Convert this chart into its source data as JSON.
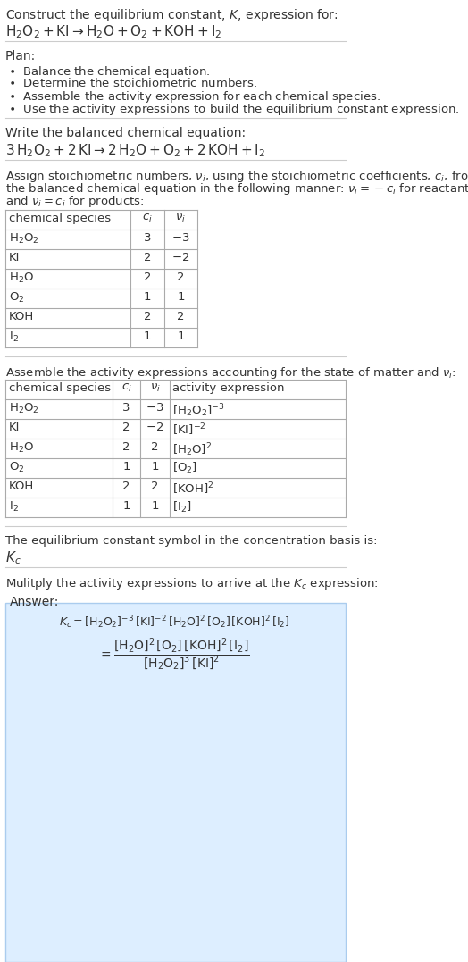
{
  "title_line1": "Construct the equilibrium constant, $K$, expression for:",
  "title_line2": "$\\text{H}_2\\text{O}_2 + \\text{KI} \\rightarrow \\text{H}_2\\text{O} + \\text{O}_2 + \\text{KOH} + \\text{I}_2$",
  "plan_header": "Plan:",
  "plan_items": [
    "\\textbullet  Balance the chemical equation.",
    "\\textbullet  Determine the stoichiometric numbers.",
    "\\textbullet  Assemble the activity expression for each chemical species.",
    "\\textbullet  Use the activity expressions to build the equilibrium constant expression."
  ],
  "balanced_header": "Write the balanced chemical equation:",
  "balanced_eq": "$3\\,\\text{H}_2\\text{O}_2 + 2\\,\\text{KI} \\rightarrow 2\\,\\text{H}_2\\text{O} + \\text{O}_2 + 2\\,\\text{KOH} + \\text{I}_2$",
  "stoich_header": "Assign stoichiometric numbers, $\\nu_i$, using the stoichiometric coefficients, $c_i$, from\nthe balanced chemical equation in the following manner: $\\nu_i = -c_i$ for reactants\nand $\\nu_i = c_i$ for products:",
  "table1_headers": [
    "chemical species",
    "$c_i$",
    "$\\nu_i$"
  ],
  "table1_rows": [
    [
      "$\\text{H}_2\\text{O}_2$",
      "3",
      "$-3$"
    ],
    [
      "KI",
      "2",
      "$-2$"
    ],
    [
      "$\\text{H}_2\\text{O}$",
      "2",
      "2"
    ],
    [
      "$\\text{O}_2$",
      "1",
      "1"
    ],
    [
      "KOH",
      "2",
      "2"
    ],
    [
      "$\\text{I}_2$",
      "1",
      "1"
    ]
  ],
  "activity_header": "Assemble the activity expressions accounting for the state of matter and $\\nu_i$:",
  "table2_headers": [
    "chemical species",
    "$c_i$",
    "$\\nu_i$",
    "activity expression"
  ],
  "table2_rows": [
    [
      "$\\text{H}_2\\text{O}_2$",
      "3",
      "$-3$",
      "$[\\text{H}_2\\text{O}_2]^{-3}$"
    ],
    [
      "KI",
      "2",
      "$-2$",
      "$[\\text{KI}]^{-2}$"
    ],
    [
      "$\\text{H}_2\\text{O}$",
      "2",
      "2",
      "$[\\text{H}_2\\text{O}]^2$"
    ],
    [
      "$\\text{O}_2$",
      "1",
      "1",
      "$[\\text{O}_2]$"
    ],
    [
      "KOH",
      "2",
      "2",
      "$[\\text{KOH}]^2$"
    ],
    [
      "$\\text{I}_2$",
      "1",
      "1",
      "$[\\text{I}_2]$"
    ]
  ],
  "kc_header": "The equilibrium constant symbol in the concentration basis is:",
  "kc_symbol": "$K_c$",
  "multiply_header": "Mulitply the activity expressions to arrive at the $K_c$ expression:",
  "answer_label": "Answer:",
  "answer_eq_line1": "$K_c = [\\text{H}_2\\text{O}_2]^{-3}\\,[\\text{KI}]^{-2}\\,[\\text{H}_2\\text{O}]^2\\,[\\text{O}_2]\\,[\\text{KOH}]^2\\,[\\text{I}_2] = \\dfrac{[\\text{H}_2\\text{O}]^2\\,[\\text{O}_2]\\,[\\text{KOH}]^2\\,[\\text{I}_2]}{[\\text{H}_2\\text{O}_2]^3\\,[\\text{KI}]^2}$",
  "bg_color": "#ffffff",
  "text_color": "#333333",
  "table_border_color": "#aaaaaa",
  "answer_box_color": "#ddeeff",
  "answer_box_border": "#aaccee",
  "separator_color": "#cccccc",
  "font_size": 9.5,
  "table_font_size": 9.5
}
